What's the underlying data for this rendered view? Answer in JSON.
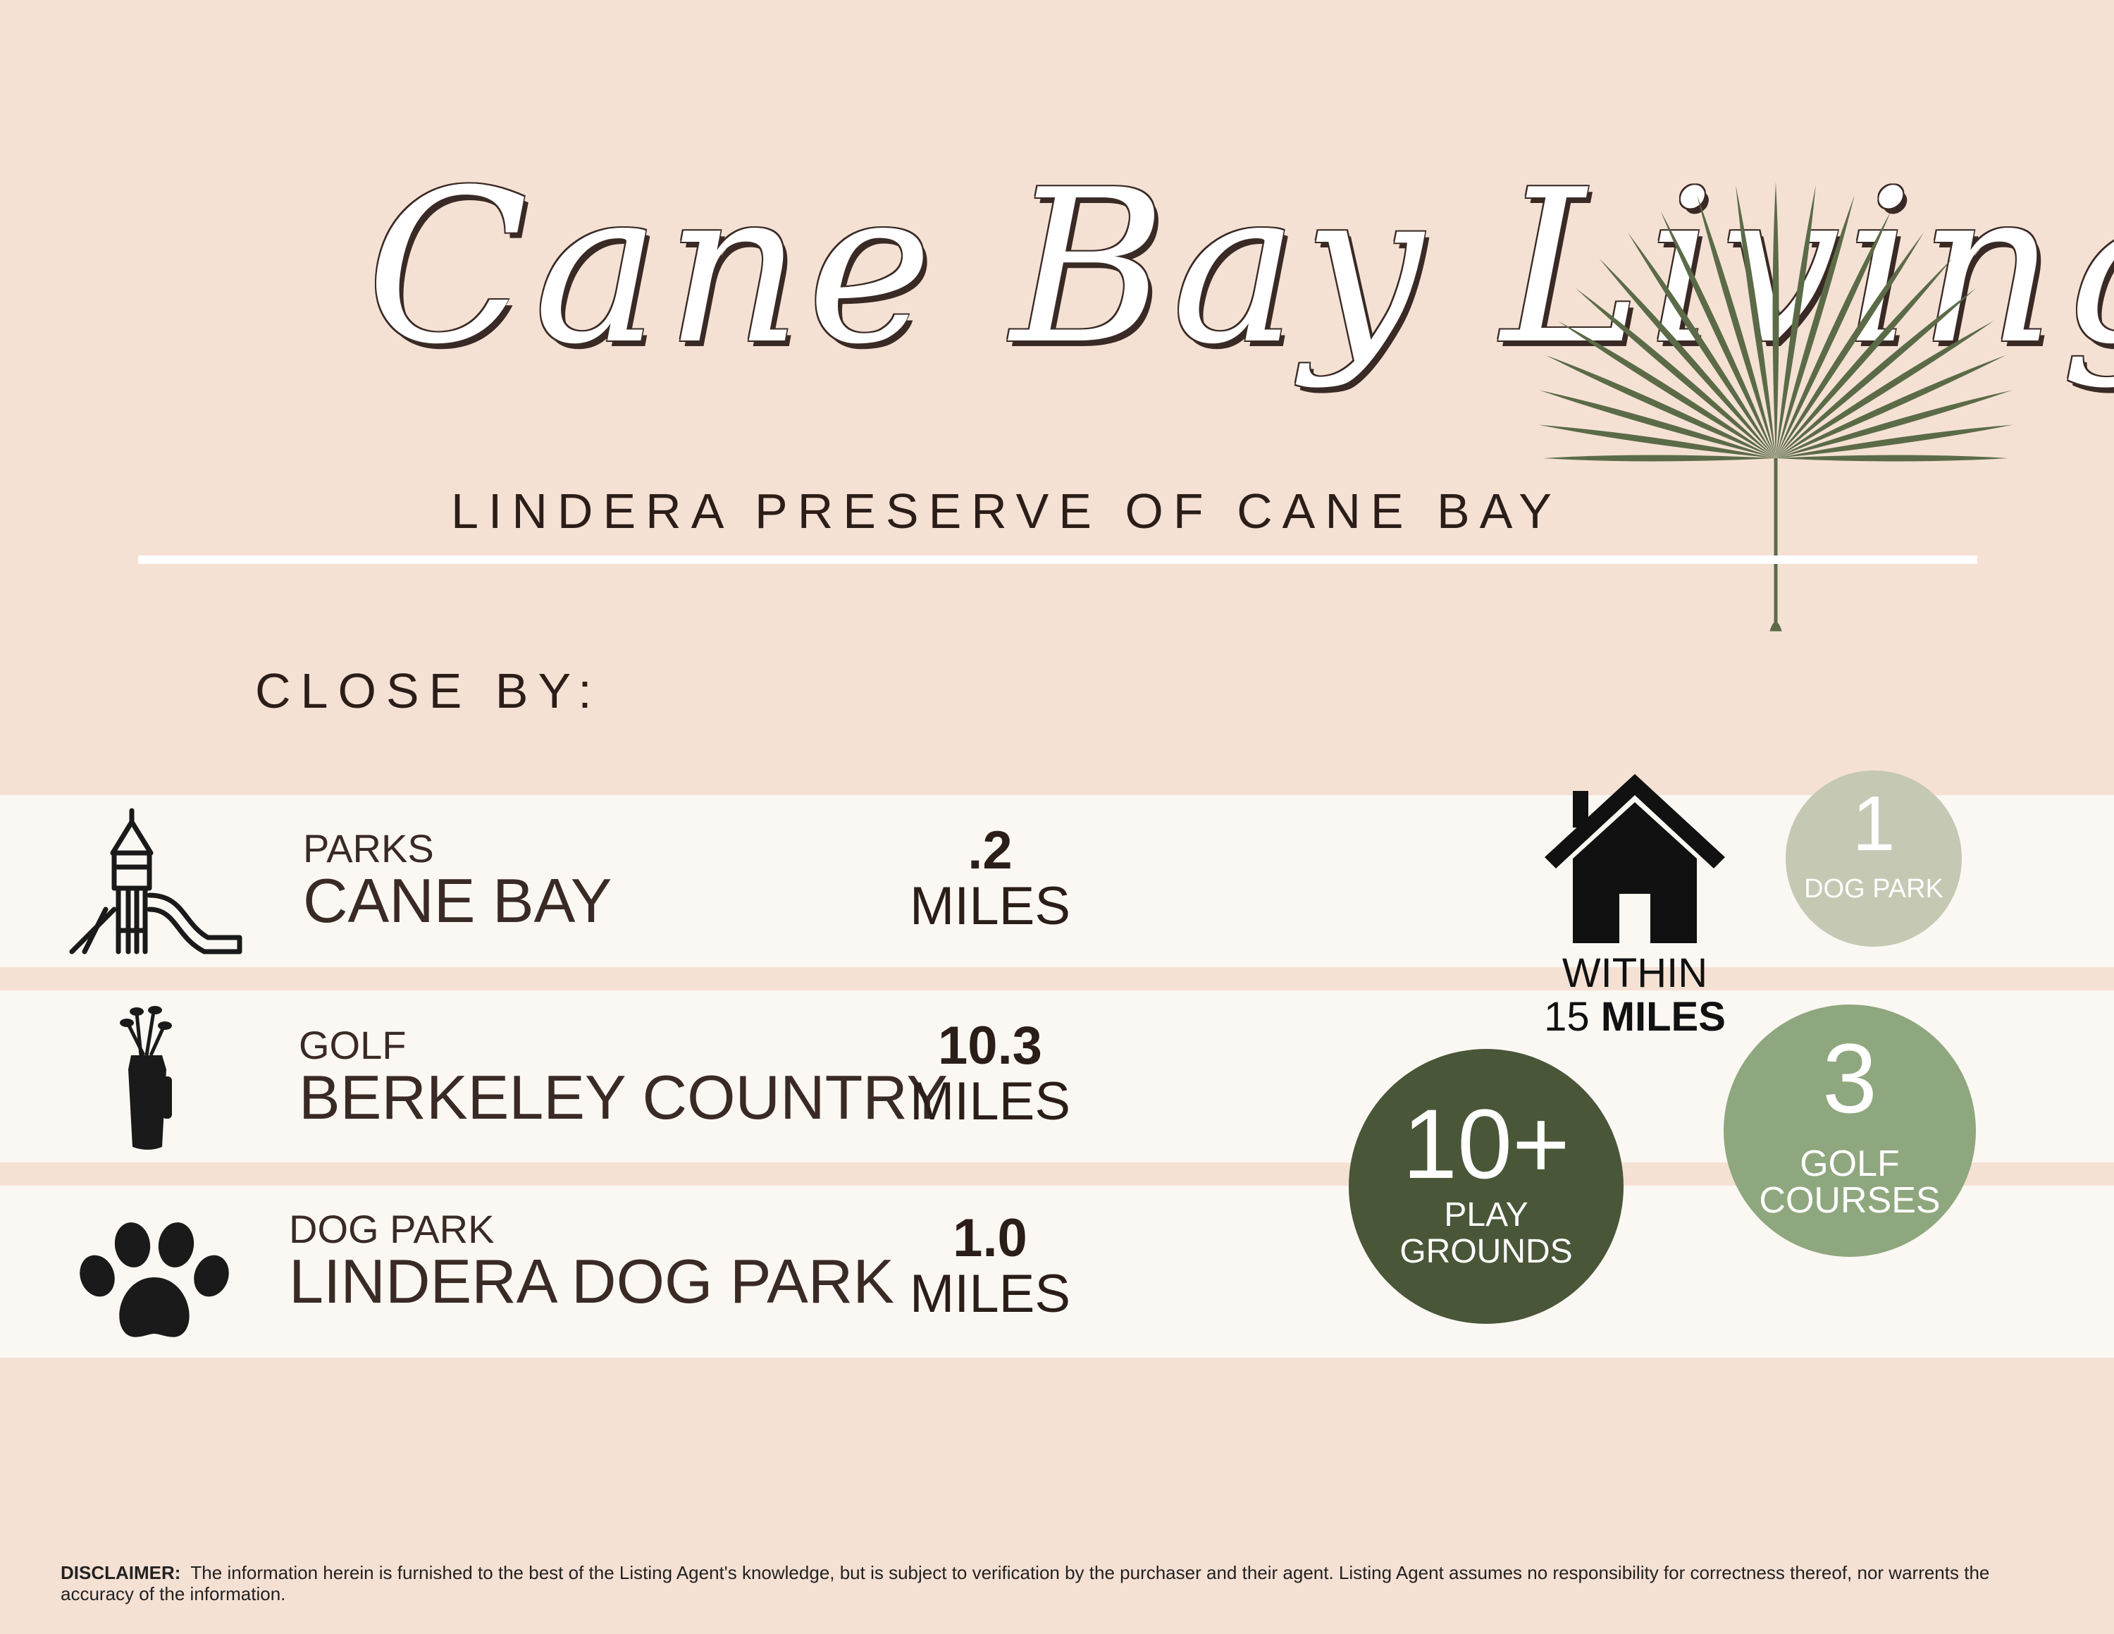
{
  "header": {
    "title": "Cane Bay Living",
    "subtitle": "LINDERA PRESERVE OF CANE BAY"
  },
  "section_label": "CLOSE BY:",
  "rows": [
    {
      "category": "PARKS",
      "name": "CANE BAY",
      "distance": ".2",
      "unit": "MILES",
      "icon": "playground-slide-icon"
    },
    {
      "category": "GOLF",
      "name": "BERKELEY COUNTRY",
      "distance": "10.3",
      "unit": "MILES",
      "icon": "golf-bag-icon"
    },
    {
      "category": "DOG PARK",
      "name": "LINDERA DOG PARK",
      "distance": "1.0",
      "unit": "MILES",
      "icon": "paw-print-icon"
    }
  ],
  "within": {
    "line1": "WITHIN",
    "line2_num": "15",
    "line2_bold": "MILES",
    "icon": "house-icon"
  },
  "stats": [
    {
      "number": "1",
      "label": "DOG PARK",
      "color": "#c5c8b3"
    },
    {
      "number": "3",
      "label_line1": "GOLF",
      "label_line2": "COURSES",
      "color": "#8fa77e"
    },
    {
      "number": "10+",
      "label_line1": "PLAY",
      "label_line2": "GROUNDS",
      "color": "#4a5638"
    }
  ],
  "disclaimer": {
    "label": "DISCLAIMER:",
    "text": "The information herein is furnished to the best of the Listing Agent's knowledge, but is subject to verification by the purchaser and their agent. Listing Agent assumes no responsibility for correctness thereof, nor warrents the accuracy of the information."
  },
  "colors": {
    "background": "#f5e1d4",
    "row": "#fbf8f3",
    "palm": "#5b6b48",
    "text": "#2b1d18"
  }
}
